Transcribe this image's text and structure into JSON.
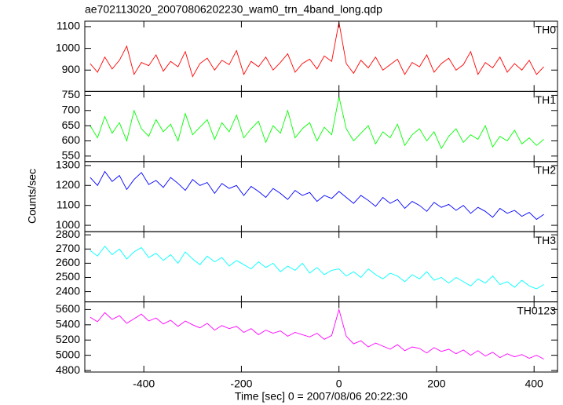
{
  "chart_data": {
    "type": "line",
    "title": "ae702113020_20070806202230_wam0_trn_4band_long.qdp",
    "xlabel": "Time [sec] 0 = 2007/08/06 20:22:30",
    "ylabel": "Counts/sec",
    "xlim": [
      -521,
      448
    ],
    "xticks": [
      -400,
      -200,
      0,
      200,
      400
    ],
    "x": [
      -510,
      -495,
      -480,
      -465,
      -450,
      -435,
      -420,
      -405,
      -390,
      -375,
      -360,
      -345,
      -330,
      -315,
      -300,
      -285,
      -270,
      -255,
      -240,
      -225,
      -210,
      -195,
      -180,
      -165,
      -150,
      -135,
      -120,
      -105,
      -90,
      -75,
      -60,
      -45,
      -30,
      -15,
      0,
      15,
      30,
      45,
      60,
      75,
      90,
      105,
      120,
      135,
      150,
      165,
      180,
      195,
      210,
      225,
      240,
      255,
      270,
      285,
      300,
      315,
      330,
      345,
      360,
      375,
      390,
      405,
      420
    ],
    "series": [
      {
        "name": "TH0",
        "color": "#ff0000",
        "ylim": [
          802,
          1125
        ],
        "yticks": [
          900,
          1000,
          1100
        ],
        "values": [
          930,
          890,
          960,
          905,
          945,
          1010,
          880,
          935,
          920,
          970,
          895,
          940,
          915,
          985,
          870,
          930,
          955,
          900,
          945,
          925,
          990,
          880,
          940,
          915,
          960,
          900,
          935,
          975,
          890,
          930,
          950,
          905,
          965,
          940,
          1120,
          930,
          885,
          945,
          910,
          960,
          900,
          925,
          950,
          880,
          935,
          915,
          970,
          890,
          930,
          955,
          900,
          925,
          985,
          880,
          935,
          910,
          960,
          890,
          930,
          900,
          945,
          880,
          915
        ]
      },
      {
        "name": "TH1",
        "color": "#00ff00",
        "ylim": [
          532,
          763
        ],
        "yticks": [
          550,
          600,
          650,
          700,
          750
        ],
        "values": [
          650,
          610,
          680,
          625,
          660,
          600,
          700,
          640,
          615,
          670,
          630,
          655,
          600,
          690,
          620,
          645,
          670,
          605,
          660,
          630,
          685,
          610,
          640,
          665,
          595,
          650,
          625,
          700,
          610,
          640,
          660,
          600,
          645,
          620,
          745,
          640,
          600,
          625,
          650,
          590,
          630,
          610,
          655,
          585,
          620,
          640,
          600,
          630,
          575,
          615,
          640,
          595,
          620,
          605,
          650,
          580,
          615,
          600,
          635,
          590,
          610,
          585,
          605
        ]
      },
      {
        "name": "TH2",
        "color": "#0000ff",
        "ylim": [
          968,
          1320
        ],
        "yticks": [
          1000,
          1100,
          1200,
          1300
        ],
        "values": [
          1240,
          1200,
          1270,
          1220,
          1250,
          1180,
          1230,
          1265,
          1205,
          1225,
          1190,
          1240,
          1210,
          1175,
          1230,
          1200,
          1215,
          1160,
          1210,
          1185,
          1200,
          1150,
          1195,
          1170,
          1140,
          1185,
          1160,
          1130,
          1175,
          1150,
          1165,
          1120,
          1150,
          1135,
          1170,
          1140,
          1110,
          1150,
          1125,
          1095,
          1140,
          1110,
          1130,
          1085,
          1120,
          1100,
          1070,
          1115,
          1090,
          1105,
          1075,
          1100,
          1060,
          1090,
          1070,
          1040,
          1085,
          1060,
          1075,
          1045,
          1065,
          1030,
          1055
        ]
      },
      {
        "name": "TH3",
        "color": "#00ffff",
        "ylim": [
          2328,
          2822
        ],
        "yticks": [
          2400,
          2500,
          2600,
          2700,
          2800
        ],
        "values": [
          2690,
          2650,
          2720,
          2660,
          2700,
          2630,
          2680,
          2710,
          2640,
          2670,
          2620,
          2660,
          2600,
          2680,
          2630,
          2590,
          2650,
          2610,
          2640,
          2580,
          2620,
          2590,
          2560,
          2610,
          2570,
          2600,
          2540,
          2580,
          2550,
          2600,
          2530,
          2570,
          2520,
          2550,
          2560,
          2510,
          2540,
          2500,
          2560,
          2520,
          2490,
          2530,
          2510,
          2470,
          2520,
          2490,
          2540,
          2480,
          2500,
          2460,
          2500,
          2470,
          2440,
          2490,
          2460,
          2510,
          2450,
          2470,
          2430,
          2480,
          2440,
          2420,
          2450
        ]
      },
      {
        "name": "TH0123",
        "color": "#ff00ff",
        "ylim": [
          4780,
          5701
        ],
        "yticks": [
          4800,
          5000,
          5200,
          5400,
          5600
        ],
        "values": [
          5500,
          5440,
          5560,
          5470,
          5520,
          5420,
          5480,
          5540,
          5450,
          5490,
          5410,
          5460,
          5380,
          5450,
          5400,
          5360,
          5420,
          5330,
          5390,
          5350,
          5380,
          5300,
          5350,
          5270,
          5330,
          5290,
          5320,
          5250,
          5300,
          5270,
          5240,
          5290,
          5210,
          5260,
          5600,
          5250,
          5150,
          5190,
          5110,
          5160,
          5120,
          5080,
          5140,
          5060,
          5110,
          5090,
          5030,
          5100,
          5050,
          5080,
          5020,
          5070,
          5000,
          5060,
          4990,
          5040,
          4970,
          5020,
          4980,
          5010,
          4960,
          5000,
          4950
        ]
      }
    ]
  }
}
